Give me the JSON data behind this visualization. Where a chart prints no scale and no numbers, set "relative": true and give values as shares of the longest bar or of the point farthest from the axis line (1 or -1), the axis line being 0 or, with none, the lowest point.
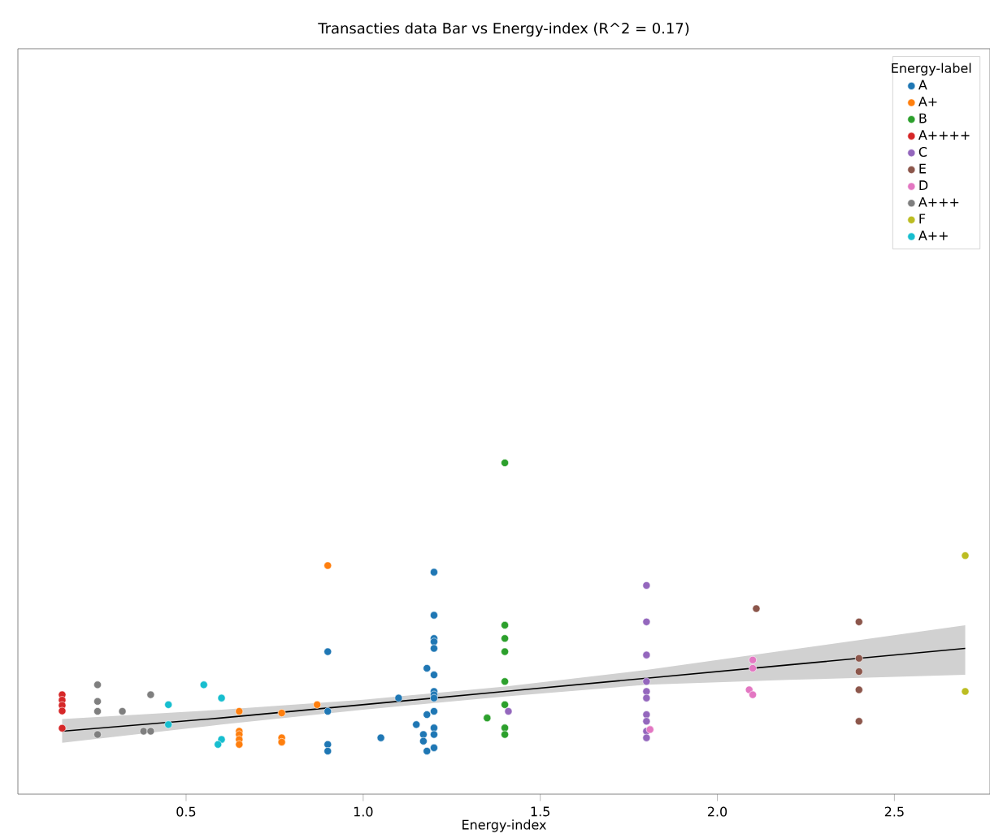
{
  "chart_data": {
    "type": "scatter",
    "title": "Transacties data Bar vs Energy-index (R^2 = 0.17)",
    "xlabel": "Energy-index",
    "legend_title": "Energy-label",
    "legend": "top right",
    "grid": false,
    "relative": true,
    "tick_labels": "x",
    "xlim": [
      0.025,
      2.77
    ],
    "xticks": [
      0.5,
      {
        "value": 1.0,
        "label": "1.0"
      },
      1.5,
      {
        "value": 2.0,
        "label": "2.0"
      },
      2.5
    ],
    "series": [
      {
        "name": "A",
        "marker": "circle",
        "color": "#1f77b4",
        "x": [
          0.9,
          0.9,
          0.9,
          0.9,
          1.05,
          1.1,
          1.15,
          1.17,
          1.17,
          1.18,
          1.18,
          1.18,
          1.2,
          1.2,
          1.2,
          1.2,
          1.2,
          1.2,
          1.2,
          1.2,
          1.2,
          1.2,
          1.2,
          1.2,
          1.2
        ],
        "values": [
          0.43,
          0.25,
          0.15,
          0.13,
          0.17,
          0.29,
          0.21,
          0.18,
          0.16,
          0.24,
          0.38,
          0.13,
          0.67,
          0.54,
          0.47,
          0.46,
          0.44,
          0.36,
          0.31,
          0.3,
          0.29,
          0.25,
          0.2,
          0.18,
          0.14
        ]
      },
      {
        "name": "A+",
        "marker": "circle",
        "color": "#ff7f0e",
        "x": [
          0.65,
          0.65,
          0.65,
          0.65,
          0.65,
          0.77,
          0.77,
          0.77,
          0.87,
          0.9
        ],
        "values": [
          0.25,
          0.19,
          0.18,
          0.165,
          0.15,
          0.245,
          0.17,
          0.157,
          0.27,
          0.69
        ]
      },
      {
        "name": "B",
        "marker": "circle",
        "color": "#2ca02c",
        "x": [
          1.35,
          1.4,
          1.4,
          1.4,
          1.4,
          1.4,
          1.4,
          1.4,
          1.4
        ],
        "values": [
          0.23,
          1.0,
          0.51,
          0.47,
          0.43,
          0.34,
          0.27,
          0.2,
          0.18
        ]
      },
      {
        "name": "A++++",
        "marker": "circle",
        "color": "#d62728",
        "x": [
          0.15,
          0.15,
          0.15,
          0.15,
          0.15
        ],
        "values": [
          0.3,
          0.284,
          0.268,
          0.251,
          0.199
        ]
      },
      {
        "name": "C",
        "marker": "circle",
        "color": "#9467bd",
        "x": [
          1.41,
          1.8,
          1.8,
          1.8,
          1.8,
          1.8,
          1.8,
          1.8,
          1.8,
          1.8,
          1.8
        ],
        "values": [
          0.25,
          0.63,
          0.52,
          0.42,
          0.34,
          0.31,
          0.29,
          0.24,
          0.22,
          0.19,
          0.17
        ]
      },
      {
        "name": "E",
        "marker": "circle",
        "color": "#8c564b",
        "x": [
          2.11,
          2.4,
          2.4,
          2.4,
          2.4,
          2.4
        ],
        "values": [
          0.56,
          0.52,
          0.41,
          0.37,
          0.315,
          0.22
        ]
      },
      {
        "name": "D",
        "marker": "circle",
        "color": "#e377c2",
        "x": [
          1.81,
          2.1,
          2.1,
          2.09,
          2.1
        ],
        "values": [
          0.195,
          0.405,
          0.38,
          0.315,
          0.3
        ]
      },
      {
        "name": "A+++",
        "marker": "circle",
        "color": "#7f7f7f",
        "x": [
          0.25,
          0.25,
          0.25,
          0.25,
          0.32,
          0.4,
          0.38,
          0.4
        ],
        "values": [
          0.33,
          0.28,
          0.25,
          0.18,
          0.25,
          0.3,
          0.19,
          0.19
        ]
      },
      {
        "name": "F",
        "marker": "circle",
        "color": "#bcbd22",
        "x": [
          2.7,
          2.7
        ],
        "values": [
          0.72,
          0.31
        ]
      },
      {
        "name": "A++",
        "marker": "circle",
        "color": "#17becf",
        "x": [
          0.45,
          0.45,
          0.55,
          0.6,
          0.6,
          0.59
        ],
        "values": [
          0.27,
          0.21,
          0.33,
          0.29,
          0.165,
          0.15
        ]
      },
      {
        "type": "line",
        "marker": "none",
        "color": "#000000",
        "x": [
          0.15,
          0.6,
          1.0,
          1.4,
          1.8,
          2.2,
          2.7
        ],
        "values": [
          0.19,
          0.23,
          0.27,
          0.31,
          0.35,
          0.39,
          0.44
        ],
        "lower": [
          0.155,
          0.21,
          0.255,
          0.295,
          0.33,
          0.345,
          0.36
        ],
        "upper": [
          0.227,
          0.255,
          0.285,
          0.325,
          0.375,
          0.435,
          0.51
        ]
      }
    ]
  }
}
